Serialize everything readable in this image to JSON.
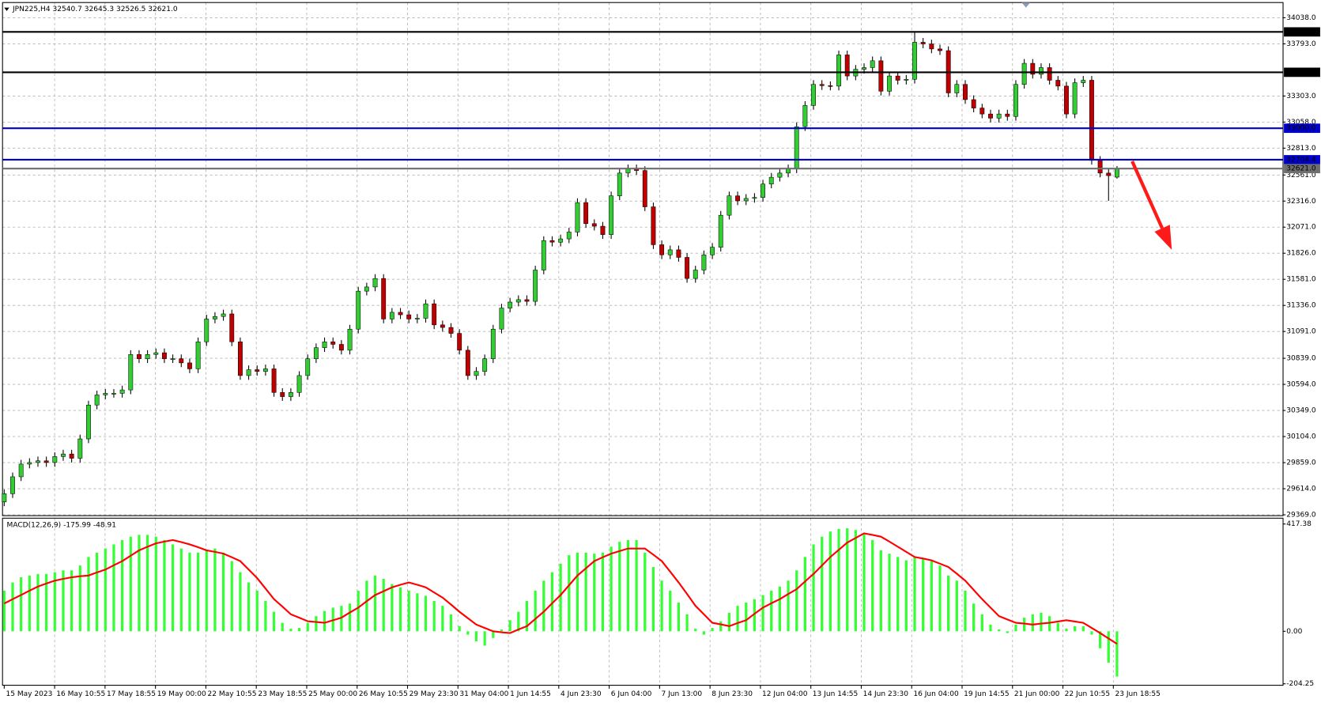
{
  "chart_data": [
    {
      "type": "candlestick",
      "title": "JPN225,H4  32540.7 32645.3 32526.5 32621.0",
      "up_color": "#32cd32",
      "down_color": "#c00000",
      "wick_color": "#000000",
      "grid": true,
      "ylim": [
        29361,
        34181
      ],
      "yticks": [
        {
          "value": 34038,
          "label": "34038.0"
        },
        {
          "value": 33793,
          "label": "33793.0"
        },
        {
          "value": 33303,
          "label": "33303.0"
        },
        {
          "value": 33058,
          "label": "33058.0"
        },
        {
          "value": 32813,
          "label": "32813.0"
        },
        {
          "value": 32561,
          "label": "32561.0"
        },
        {
          "value": 32316,
          "label": "32316.0"
        },
        {
          "value": 32071,
          "label": "32071.0"
        },
        {
          "value": 31826,
          "label": "31826.0"
        },
        {
          "value": 31581,
          "label": "31581.0"
        },
        {
          "value": 31336,
          "label": "31336.0"
        },
        {
          "value": 31091,
          "label": "31091.0"
        },
        {
          "value": 30839,
          "label": "30839.0"
        },
        {
          "value": 30594,
          "label": "30594.0"
        },
        {
          "value": 30349,
          "label": "30349.0"
        },
        {
          "value": 30104,
          "label": "30104.0"
        },
        {
          "value": 29859,
          "label": "29859.0"
        },
        {
          "value": 29614,
          "label": "29614.0"
        },
        {
          "value": 29369,
          "label": "29369.0"
        }
      ],
      "levels": [
        {
          "value": 33905.1,
          "label": "33905.1",
          "color": "#000000"
        },
        {
          "value": 33525.9,
          "label": "33525.9",
          "color": "#000000"
        },
        {
          "value": 33000,
          "label": "33000.0",
          "color": "#0000cd"
        },
        {
          "value": 32704.4,
          "label": "32704.4",
          "color": "#0000cd"
        },
        {
          "value": 32621,
          "label": "32621.0",
          "color": "#6e6e6e"
        }
      ],
      "x_labels": [
        "15 May 2023",
        "16 May 10:55",
        "17 May 18:55",
        "19 May 00:00",
        "22 May 10:55",
        "23 May 18:55",
        "25 May 00:00",
        "26 May 10:55",
        "29 May 23:30",
        "31 May 04:00",
        "1 Jun 14:55",
        "4 Jun 23:30",
        "6 Jun 04:00",
        "7 Jun 13:00",
        "8 Jun 23:30",
        "12 Jun 04:00",
        "13 Jun 14:55",
        "14 Jun 23:30",
        "16 Jun 04:00",
        "19 Jun 14:55",
        "21 Jun 00:00",
        "22 Jun 10:55",
        "23 Jun 18:55"
      ],
      "open": [
        29490,
        29567,
        29726,
        29845,
        29860,
        29876,
        29860,
        29916,
        29940,
        29900,
        30082,
        30400,
        30495,
        30510,
        30510,
        30542,
        30875,
        30835,
        30875,
        30891,
        30835,
        30835,
        30796,
        30740,
        30994,
        31208,
        31232,
        31256,
        30994,
        30677,
        30732,
        30716,
        30740,
        30518,
        30479,
        30518,
        30677,
        30835,
        30939,
        30994,
        30970,
        30915,
        31113,
        31470,
        31509,
        31589,
        31208,
        31271,
        31248,
        31208,
        31215,
        31351,
        31153,
        31129,
        31073,
        30915,
        30677,
        30716,
        30835,
        31113,
        31311,
        31367,
        31390,
        31374,
        31668,
        31945,
        31930,
        31961,
        32025,
        32302,
        32104,
        32080,
        32001,
        32365,
        32579,
        32619,
        32603,
        32262,
        31906,
        31811,
        31858,
        31787,
        31589,
        31668,
        31811,
        31882,
        32183,
        32365,
        32318,
        32341,
        32350,
        32476,
        32540,
        32579,
        32619,
        33015,
        33214,
        33412,
        33400,
        33396,
        33689,
        33491,
        33554,
        33570,
        33634,
        33348,
        33491,
        33451,
        33460,
        33808,
        33792,
        33745,
        33729,
        33332,
        33412,
        33269,
        33190,
        33134,
        33095,
        33134,
        33111,
        33412,
        33610,
        33507,
        33570,
        33451,
        33396,
        33134,
        33428,
        33451,
        32698,
        32579,
        32540.7
      ],
      "high": [
        29607,
        29766,
        29885,
        29900,
        29916,
        29916,
        29956,
        29980,
        29980,
        30122,
        30440,
        30535,
        30550,
        30550,
        30582,
        30915,
        30915,
        30915,
        30931,
        30931,
        30875,
        30875,
        30836,
        31034,
        31248,
        31272,
        31296,
        31296,
        31034,
        30772,
        30772,
        30780,
        30780,
        30558,
        30558,
        30717,
        30875,
        30979,
        31034,
        31034,
        31010,
        31153,
        31510,
        31549,
        31629,
        31629,
        31311,
        31311,
        31288,
        31255,
        31391,
        31391,
        31193,
        31169,
        31113,
        30955,
        30756,
        30875,
        31153,
        31351,
        31407,
        31430,
        31430,
        31708,
        31985,
        31985,
        32001,
        32065,
        32342,
        32342,
        32144,
        32120,
        32405,
        32619,
        32659,
        32659,
        32643,
        32302,
        31946,
        31898,
        31898,
        31827,
        31708,
        31851,
        31922,
        32223,
        32405,
        32405,
        32381,
        32390,
        32516,
        32580,
        32619,
        32659,
        33055,
        33254,
        33452,
        33452,
        33440,
        33729,
        33729,
        33594,
        33610,
        33674,
        33674,
        33531,
        33531,
        33500,
        33905,
        33848,
        33832,
        33785,
        33769,
        33452,
        33452,
        33309,
        33230,
        33174,
        33174,
        33174,
        33452,
        33650,
        33650,
        33610,
        33610,
        33491,
        33436,
        33468,
        33491,
        33491,
        32738,
        32619,
        32645.3
      ],
      "low": [
        29450,
        29527,
        29686,
        29805,
        29820,
        29820,
        29820,
        29876,
        29860,
        29860,
        30042,
        30360,
        30455,
        30470,
        30470,
        30502,
        30795,
        30795,
        30835,
        30795,
        30795,
        30756,
        30700,
        30700,
        30954,
        31168,
        31192,
        30954,
        30637,
        30637,
        30676,
        30676,
        30478,
        30439,
        30439,
        30478,
        30637,
        30795,
        30899,
        30930,
        30875,
        30875,
        31073,
        31430,
        31469,
        31168,
        31168,
        31208,
        31168,
        31168,
        31175,
        31113,
        31089,
        31033,
        30875,
        30637,
        30637,
        30676,
        30795,
        31073,
        31271,
        31327,
        31334,
        31334,
        31628,
        31890,
        31890,
        31921,
        31985,
        32064,
        32040,
        31961,
        31961,
        32325,
        32539,
        32563,
        32222,
        31866,
        31771,
        31771,
        31747,
        31549,
        31549,
        31628,
        31771,
        31842,
        32143,
        32278,
        32278,
        32301,
        32310,
        32436,
        32500,
        32539,
        32579,
        32975,
        33174,
        33360,
        33356,
        33356,
        33451,
        33451,
        33514,
        33530,
        33308,
        33308,
        33411,
        33411,
        33420,
        33752,
        33705,
        33689,
        33292,
        33292,
        33229,
        33150,
        33094,
        33055,
        33055,
        33071,
        33071,
        33372,
        33467,
        33467,
        33411,
        33356,
        33094,
        33094,
        33388,
        32658,
        32539,
        32318,
        32526.5
      ],
      "close": [
        29567,
        29726,
        29845,
        29860,
        29876,
        29860,
        29916,
        29940,
        29900,
        30082,
        30400,
        30495,
        30510,
        30510,
        30542,
        30875,
        30835,
        30875,
        30891,
        30835,
        30835,
        30796,
        30740,
        30994,
        31208,
        31232,
        31256,
        30994,
        30677,
        30732,
        30716,
        30740,
        30518,
        30479,
        30518,
        30677,
        30835,
        30939,
        30994,
        30970,
        30915,
        31113,
        31470,
        31509,
        31589,
        31208,
        31271,
        31248,
        31208,
        31215,
        31351,
        31153,
        31129,
        31073,
        30915,
        30677,
        30716,
        30835,
        31113,
        31311,
        31367,
        31390,
        31374,
        31668,
        31945,
        31930,
        31961,
        32025,
        32302,
        32104,
        32080,
        32001,
        32365,
        32579,
        32619,
        32603,
        32262,
        31906,
        31811,
        31858,
        31787,
        31589,
        31668,
        31811,
        31882,
        32183,
        32365,
        32318,
        32341,
        32350,
        32476,
        32540,
        32579,
        32619,
        33015,
        33214,
        33412,
        33400,
        33396,
        33689,
        33491,
        33554,
        33570,
        33634,
        33348,
        33491,
        33451,
        33460,
        33808,
        33792,
        33745,
        33729,
        33332,
        33412,
        33269,
        33190,
        33134,
        33095,
        33134,
        33111,
        33412,
        33610,
        33507,
        33570,
        33451,
        33396,
        33134,
        33428,
        33451,
        32698,
        32579,
        32555,
        32621
      ]
    },
    {
      "type": "macd",
      "title": "MACD(12,26,9) -175.99 -48.91",
      "histogram_color": "#33ff33",
      "signal_color": "#ff0000",
      "ylim": [
        -210,
        440
      ],
      "yticks": [
        {
          "value": 417.38,
          "label": "417.38"
        },
        {
          "value": 0,
          "label": "0.00"
        },
        {
          "value": -204.25,
          "label": "-204.25"
        }
      ],
      "histogram": [
        158,
        190,
        210,
        217,
        223,
        223,
        230,
        237,
        237,
        256,
        289,
        306,
        322,
        338,
        355,
        368,
        375,
        375,
        368,
        355,
        338,
        322,
        306,
        306,
        315,
        322,
        306,
        273,
        230,
        190,
        158,
        118,
        76,
        33,
        10,
        13,
        33,
        59,
        79,
        92,
        99,
        108,
        158,
        197,
        217,
        204,
        184,
        171,
        158,
        148,
        138,
        118,
        99,
        66,
        20,
        -13,
        -39,
        -56,
        -26,
        7,
        43,
        76,
        118,
        158,
        197,
        230,
        263,
        296,
        306,
        306,
        302,
        306,
        329,
        348,
        355,
        355,
        306,
        250,
        197,
        158,
        112,
        66,
        10,
        -13,
        13,
        39,
        72,
        99,
        112,
        125,
        141,
        158,
        174,
        197,
        237,
        289,
        338,
        368,
        388,
        398,
        401,
        394,
        381,
        355,
        315,
        302,
        289,
        276,
        289,
        283,
        273,
        256,
        217,
        197,
        158,
        108,
        66,
        26,
        7,
        -7,
        26,
        53,
        66,
        72,
        59,
        33,
        10,
        20,
        20,
        -13,
        -66,
        -122,
        -175.99
      ],
      "signal": [
        108,
        125,
        141,
        158,
        174,
        186,
        197,
        204,
        210,
        214,
        217,
        229,
        240,
        257,
        273,
        294,
        315,
        329,
        342,
        349,
        355,
        347,
        338,
        327,
        315,
        309,
        302,
        288,
        273,
        240,
        207,
        166,
        125,
        96,
        66,
        53,
        39,
        36,
        33,
        43,
        53,
        73,
        92,
        117,
        141,
        156,
        171,
        181,
        190,
        181,
        171,
        151,
        131,
        104,
        76,
        51,
        26,
        13,
        0,
        -4,
        -7,
        7,
        20,
        48,
        76,
        109,
        141,
        179,
        217,
        245,
        273,
        288,
        302,
        312,
        322,
        322,
        322,
        298,
        273,
        232,
        190,
        145,
        99,
        66,
        33,
        27,
        20,
        32,
        43,
        68,
        92,
        109,
        125,
        145,
        164,
        194,
        223,
        256,
        289,
        317,
        345,
        363,
        381,
        375,
        368,
        349,
        329,
        309,
        289,
        283,
        276,
        263,
        250,
        224,
        197,
        161,
        125,
        92,
        59,
        46,
        33,
        30,
        26,
        30,
        33,
        38,
        43,
        38,
        33,
        13,
        -7,
        -28,
        -48.91
      ]
    }
  ]
}
